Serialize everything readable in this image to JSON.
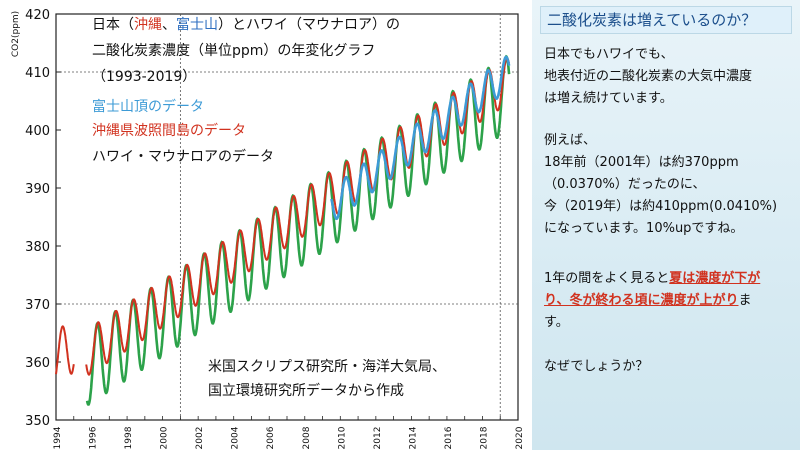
{
  "chart_data": {
    "type": "line",
    "title_lines": [
      "日本（沖縄、富士山）とハワイ（マウナロア）の",
      "二酸化炭素濃度（単位ppm）の年変化グラフ",
      "（1993-2019）"
    ],
    "title_parts": {
      "pre": "日本（",
      "okinawa": "沖縄",
      "sep": "、",
      "fuji": "富士山",
      "post": "）とハワイ（マウナロア）の"
    },
    "ylabel": "CO2(ppm)",
    "ylim": [
      350,
      420
    ],
    "xlim": [
      1994,
      2020
    ],
    "yticks": [
      350,
      360,
      370,
      380,
      390,
      400,
      410,
      420
    ],
    "xticks": [
      1994,
      1996,
      1998,
      2000,
      2002,
      2004,
      2006,
      2008,
      2010,
      2012,
      2014,
      2016,
      2018,
      2020
    ],
    "reference_lines": {
      "x": [
        2001,
        2019
      ],
      "y": [
        370,
        410
      ]
    },
    "legend": [
      "富士山頂のデータ",
      "沖縄県波照間島のデータ",
      "ハワイ・マウナロアのデータ"
    ],
    "source": [
      "米国スクリプス研究所・海洋大気局、",
      "国立環境研究所データから作成"
    ],
    "series": [
      {
        "name": "ハワイ・マウナロアのデータ",
        "color": "#2ca24a",
        "start": 1995.75,
        "end": 2019.5,
        "trend": {
          "year0": 1995.75,
          "value0": 359.0,
          "slope": 2.0
        },
        "seasonal_amplitude": 6.5
      },
      {
        "name": "沖縄県波照間島のデータ",
        "color": "#d1321f",
        "segments": [
          {
            "start": 1994.0,
            "end": 1995.0,
            "trend_value0": 361.0,
            "slope": 1.7,
            "seasonal_amplitude": 4.5
          },
          {
            "start": 1995.7,
            "end": 2019.5,
            "trend_value0": 361.5,
            "slope": 1.98,
            "seasonal_amplitude": 4.0
          }
        ]
      },
      {
        "name": "富士山頂のデータ",
        "color": "#3d9bd6",
        "start": 2009.5,
        "end": 2019.5,
        "trend": {
          "year0": 2009.5,
          "value0": 387.0,
          "slope": 2.3
        },
        "seasonal_amplitude": 3.0
      }
    ]
  },
  "side": {
    "title": "二酸化炭素は増えているのか？",
    "p1": [
      "日本でもハワイでも、",
      "地表付近の二酸化炭素の大気中濃度",
      "は増え続けています。"
    ],
    "p2": [
      "例えば、",
      "18年前（2001年）は約370ppm",
      "（0.0370%）だったのに、",
      "今（2019年）は約410ppm(0.0410%)",
      "になっています。10%upですね。"
    ],
    "p3_a": "1年の間をよく見ると",
    "p3_b": "夏は濃度が下が",
    "p3_c": "り、冬が終わる頃に濃度が上がりま",
    "p3_c1": "り、冬が終わる頃に",
    "p3_c2": "濃度が上がり",
    "p3_c3": "ま",
    "p3_d": "す。",
    "p4": "なぜでしょうか？"
  }
}
